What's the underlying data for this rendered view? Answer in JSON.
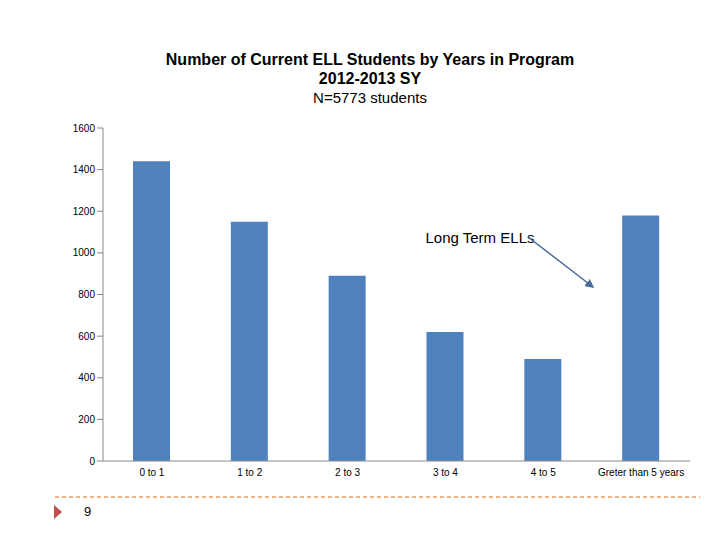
{
  "chart_data": {
    "type": "bar",
    "title": "Number of Current ELL Students by Years in Program",
    "subtitle": "2012-2013 SY",
    "note": "N=5773 students",
    "categories": [
      "0 to 1",
      "1 to 2",
      "2 to 3",
      "3 to 4",
      "4 to 5",
      "Greter than 5 years"
    ],
    "values": [
      1440,
      1150,
      890,
      620,
      490,
      1180
    ],
    "color": "#4f81bd",
    "ylim": [
      0,
      1600
    ],
    "yticks": [
      0,
      200,
      400,
      600,
      800,
      1000,
      1200,
      1400,
      1600
    ],
    "grid": false,
    "annotations": [
      "Long Term ELLs"
    ],
    "footer": "9"
  }
}
